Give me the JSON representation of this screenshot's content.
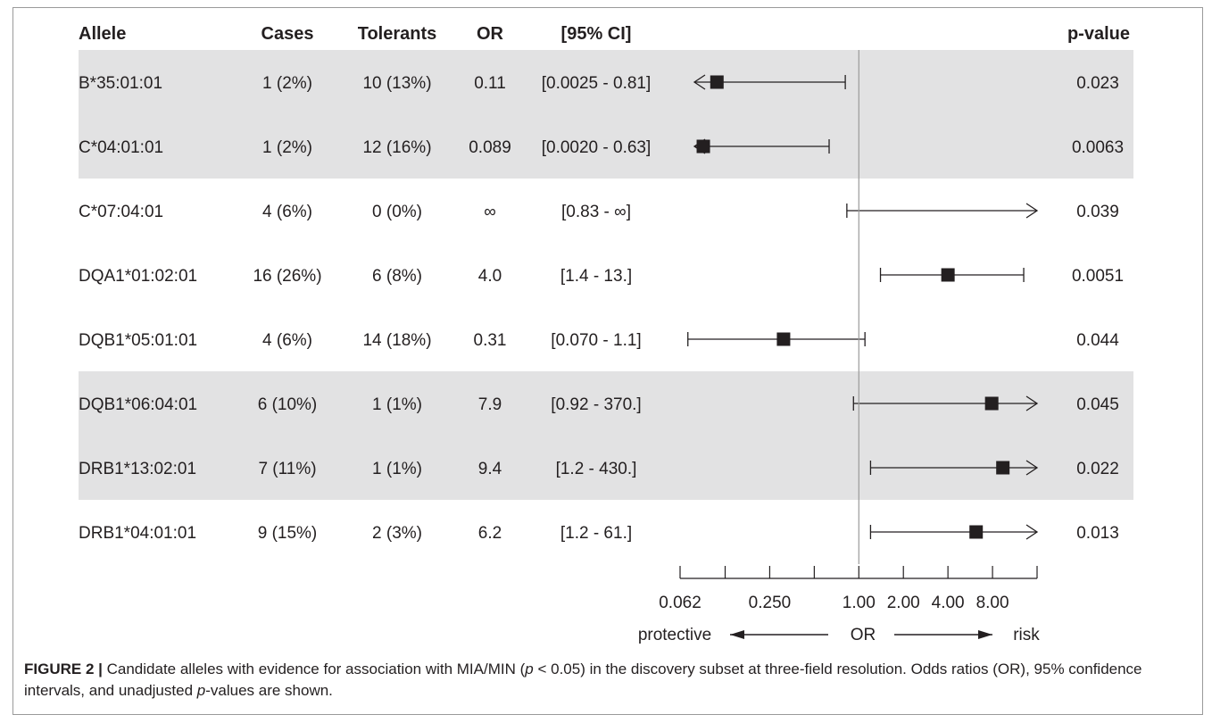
{
  "chart_data": {
    "type": "forest",
    "columns": {
      "allele": "Allele",
      "cases": "Cases",
      "tolerants": "Tolerants",
      "or": "OR",
      "ci": "[95% CI]",
      "pvalue": "p-value"
    },
    "rows": [
      {
        "allele": "B*35:01:01",
        "cases": "1 (2%)",
        "tolerants": "10 (13%)",
        "or": "0.11",
        "ci": "[0.0025 - 0.81]",
        "pvalue": "0.023",
        "or_value": 0.11,
        "lower": 0.0025,
        "upper": 0.81,
        "shaded": true
      },
      {
        "allele": "C*04:01:01",
        "cases": "1 (2%)",
        "tolerants": "12 (16%)",
        "or": "0.089",
        "ci": "[0.0020 - 0.63]",
        "pvalue": "0.0063",
        "or_value": 0.089,
        "lower": 0.002,
        "upper": 0.63,
        "shaded": true
      },
      {
        "allele": "C*07:04:01",
        "cases": "4 (6%)",
        "tolerants": "0 (0%)",
        "or": "∞",
        "ci": "[0.83 - ∞]",
        "pvalue": "0.039",
        "or_value": null,
        "lower": 0.83,
        "upper": null,
        "shaded": false
      },
      {
        "allele": "DQA1*01:02:01",
        "cases": "16 (26%)",
        "tolerants": "6 (8%)",
        "or": "4.0",
        "ci": "[1.4 - 13.]",
        "pvalue": "0.0051",
        "or_value": 4.0,
        "lower": 1.4,
        "upper": 13,
        "shaded": false
      },
      {
        "allele": "DQB1*05:01:01",
        "cases": "4 (6%)",
        "tolerants": "14 (18%)",
        "or": "0.31",
        "ci": "[0.070 - 1.1]",
        "pvalue": "0.044",
        "or_value": 0.31,
        "lower": 0.07,
        "upper": 1.1,
        "shaded": false
      },
      {
        "allele": "DQB1*06:04:01",
        "cases": "6 (10%)",
        "tolerants": "1 (1%)",
        "or": "7.9",
        "ci": "[0.92 - 370.]",
        "pvalue": "0.045",
        "or_value": 7.9,
        "lower": 0.92,
        "upper": 370,
        "shaded": true
      },
      {
        "allele": "DRB1*13:02:01",
        "cases": "7 (11%)",
        "tolerants": "1 (1%)",
        "or": "9.4",
        "ci": "[1.2 - 430.]",
        "pvalue": "0.022",
        "or_value": 9.4,
        "lower": 1.2,
        "upper": 430,
        "shaded": true
      },
      {
        "allele": "DRB1*04:01:01",
        "cases": "9 (15%)",
        "tolerants": "2 (3%)",
        "or": "6.2",
        "ci": "[1.2 - 61.]",
        "pvalue": "0.013",
        "or_value": 6.2,
        "lower": 1.2,
        "upper": 61,
        "shaded": false
      }
    ],
    "x_axis": {
      "scale": "log",
      "range": [
        0.062,
        16
      ],
      "tick_values": [
        0.062,
        0.125,
        0.25,
        0.5,
        1,
        2,
        4,
        8,
        16
      ],
      "tick_labels": [
        "0.062",
        "0.250",
        "1.00",
        "2.00",
        "4.00",
        "8.00"
      ],
      "labeled_ticks": [
        0.062,
        0.25,
        1,
        2,
        4,
        8
      ],
      "reference_line": 1,
      "label": "OR",
      "left_label": "protective",
      "right_label": "risk"
    },
    "shade_color": "#e2e2e3",
    "line_color": "#231f20"
  },
  "caption": {
    "label": "FIGURE 2 |",
    "part1": " Candidate alleles with evidence for association with MIA/MIN (",
    "p_symbol": "p",
    "part2": " < 0.05) in the discovery subset at three-field resolution. Odds ratios (OR), 95% confidence intervals, and unadjusted ",
    "p_symbol2": "p",
    "part3": "-values are shown."
  }
}
